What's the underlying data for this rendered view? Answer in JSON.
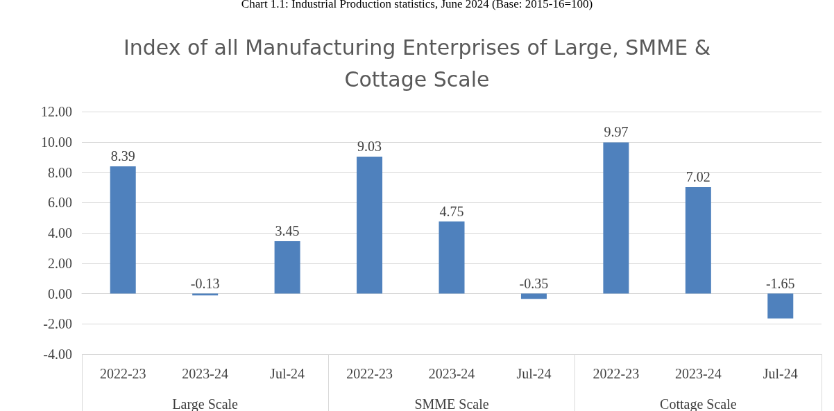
{
  "chart_data": {
    "type": "bar",
    "title": "Index of all Manufacturing Enterprises of Large, SMME &\nCottage Scale",
    "subtitle": "Chart 1.1: Industrial Production statistics, June 2024 (Base: 2015-16=100)",
    "categories": [
      "2022-23",
      "2023-24",
      "Jul-24",
      "2022-23",
      "2023-24",
      "Jul-24",
      "2022-23",
      "2023-24",
      "Jul-24"
    ],
    "values": [
      8.39,
      -0.13,
      3.45,
      9.03,
      4.75,
      -0.35,
      9.97,
      7.02,
      -1.65
    ],
    "color": "#4f81bd",
    "annotations": [
      "Large Scale",
      "SMME Scale",
      "Cottage Scale"
    ],
    "ylim": [
      -4,
      12
    ],
    "yticks": [
      {
        "value": -4,
        "label": "-4.00"
      },
      {
        "value": -2,
        "label": "-2.00"
      },
      {
        "value": 0,
        "label": "0.00"
      },
      {
        "value": 2,
        "label": "2.00"
      },
      {
        "value": 4,
        "label": "4.00"
      },
      {
        "value": 6,
        "label": "6.00"
      },
      {
        "value": 8,
        "label": "8.00"
      },
      {
        "value": 10,
        "label": "10.00"
      },
      {
        "value": 12,
        "label": "12.00"
      }
    ],
    "grid": "y",
    "data_labels": true
  }
}
